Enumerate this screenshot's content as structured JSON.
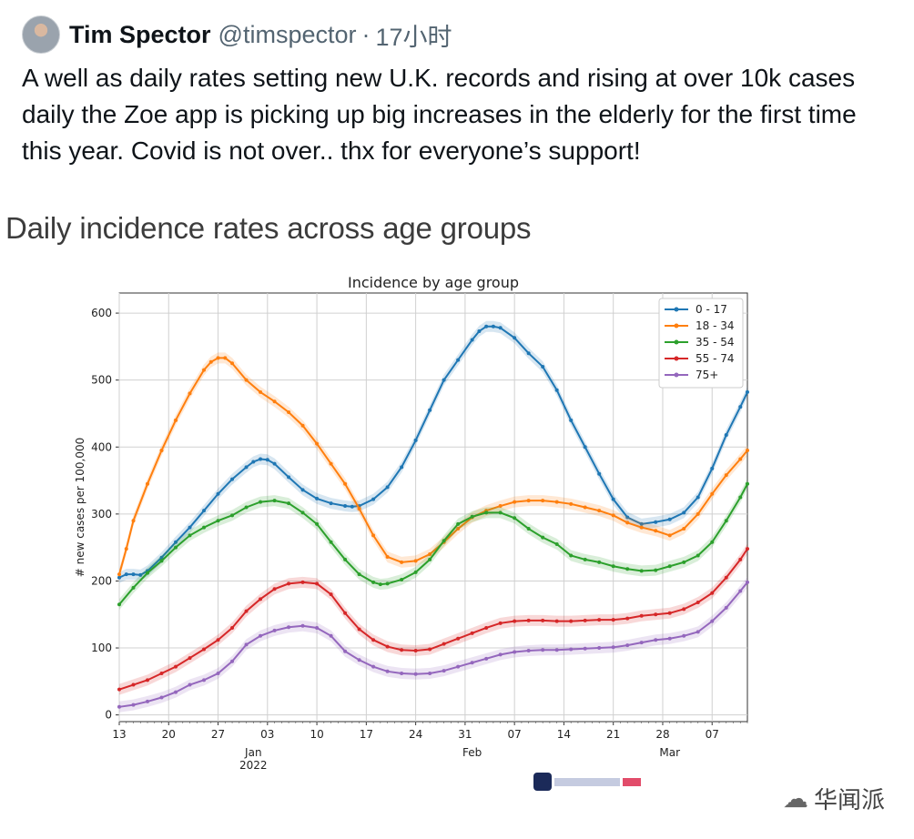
{
  "tweet": {
    "author_name": "Tim Spector",
    "handle": "@timspector",
    "separator": "·",
    "time": "17小时",
    "avatar_icon": "user-avatar",
    "text": "A well as daily rates setting new U.K. records and rising at over 10k cases daily the Zoe app is picking up big increases in the elderly for the first time this year. Covid is not over.. thx for everyone’s support!"
  },
  "chart_card": {
    "heading": "Daily incidence rates across age groups",
    "logo_icon": "covid-symptom-study-zoe-logo"
  },
  "watermark": {
    "icon": "wechat-icon",
    "text": "华闻派"
  },
  "chart_data": {
    "type": "line",
    "title": "Incidence by age group",
    "xlabel": "",
    "ylabel": "# new cases per 100,000",
    "ylim": [
      -10,
      630
    ],
    "yticks": [
      0,
      100,
      200,
      300,
      400,
      500,
      600
    ],
    "grid": true,
    "legend_position": "top-right",
    "x_start": "2021-12-13",
    "x_tick_labels": [
      {
        "day": 0,
        "label": "13"
      },
      {
        "day": 7,
        "label": "20"
      },
      {
        "day": 14,
        "label": "27"
      },
      {
        "day": 21,
        "label": "03"
      },
      {
        "day": 28,
        "label": "10"
      },
      {
        "day": 35,
        "label": "17"
      },
      {
        "day": 42,
        "label": "24"
      },
      {
        "day": 49,
        "label": "31"
      },
      {
        "day": 56,
        "label": "07"
      },
      {
        "day": 63,
        "label": "14"
      },
      {
        "day": 70,
        "label": "21"
      },
      {
        "day": 77,
        "label": "28"
      },
      {
        "day": 84,
        "label": "07"
      }
    ],
    "x_major_labels": [
      {
        "day": 19,
        "label": "Jan"
      },
      {
        "day": 19,
        "label": "2022"
      },
      {
        "day": 50,
        "label": "Feb"
      },
      {
        "day": 78,
        "label": "Mar"
      }
    ],
    "x_range": [
      0,
      89
    ],
    "series": [
      {
        "name": "0 - 17",
        "color": "#1f77b4",
        "points": [
          [
            0,
            205
          ],
          [
            1,
            210
          ],
          [
            2,
            210
          ],
          [
            3,
            209
          ],
          [
            4,
            215
          ],
          [
            6,
            235
          ],
          [
            8,
            258
          ],
          [
            10,
            280
          ],
          [
            12,
            305
          ],
          [
            14,
            330
          ],
          [
            16,
            352
          ],
          [
            18,
            370
          ],
          [
            19,
            378
          ],
          [
            20,
            382
          ],
          [
            21,
            381
          ],
          [
            22,
            375
          ],
          [
            24,
            355
          ],
          [
            26,
            336
          ],
          [
            28,
            323
          ],
          [
            30,
            316
          ],
          [
            32,
            312
          ],
          [
            33,
            311
          ],
          [
            34,
            312
          ],
          [
            36,
            322
          ],
          [
            38,
            340
          ],
          [
            40,
            370
          ],
          [
            42,
            410
          ],
          [
            44,
            455
          ],
          [
            46,
            500
          ],
          [
            48,
            530
          ],
          [
            50,
            560
          ],
          [
            51,
            573
          ],
          [
            52,
            580
          ],
          [
            53,
            580
          ],
          [
            54,
            578
          ],
          [
            56,
            563
          ],
          [
            58,
            540
          ],
          [
            60,
            520
          ],
          [
            62,
            485
          ],
          [
            64,
            440
          ],
          [
            66,
            400
          ],
          [
            68,
            360
          ],
          [
            70,
            322
          ],
          [
            72,
            295
          ],
          [
            74,
            285
          ],
          [
            76,
            288
          ],
          [
            78,
            292
          ],
          [
            80,
            302
          ],
          [
            82,
            325
          ],
          [
            84,
            368
          ],
          [
            86,
            418
          ],
          [
            88,
            460
          ],
          [
            89,
            482
          ]
        ]
      },
      {
        "name": "18 - 34",
        "color": "#ff7f0e",
        "points": [
          [
            0,
            210
          ],
          [
            1,
            248
          ],
          [
            2,
            290
          ],
          [
            4,
            345
          ],
          [
            6,
            395
          ],
          [
            8,
            440
          ],
          [
            10,
            480
          ],
          [
            12,
            515
          ],
          [
            13,
            527
          ],
          [
            14,
            533
          ],
          [
            15,
            533
          ],
          [
            16,
            525
          ],
          [
            18,
            500
          ],
          [
            20,
            482
          ],
          [
            22,
            468
          ],
          [
            24,
            452
          ],
          [
            26,
            432
          ],
          [
            28,
            405
          ],
          [
            30,
            375
          ],
          [
            32,
            345
          ],
          [
            34,
            308
          ],
          [
            36,
            268
          ],
          [
            38,
            236
          ],
          [
            40,
            228
          ],
          [
            42,
            230
          ],
          [
            44,
            240
          ],
          [
            46,
            258
          ],
          [
            48,
            278
          ],
          [
            50,
            295
          ],
          [
            52,
            305
          ],
          [
            54,
            312
          ],
          [
            56,
            318
          ],
          [
            58,
            320
          ],
          [
            60,
            320
          ],
          [
            62,
            318
          ],
          [
            64,
            315
          ],
          [
            66,
            310
          ],
          [
            68,
            305
          ],
          [
            70,
            298
          ],
          [
            72,
            287
          ],
          [
            74,
            280
          ],
          [
            76,
            275
          ],
          [
            78,
            268
          ],
          [
            80,
            278
          ],
          [
            82,
            300
          ],
          [
            84,
            330
          ],
          [
            86,
            358
          ],
          [
            88,
            382
          ],
          [
            89,
            395
          ]
        ]
      },
      {
        "name": "35 - 54",
        "color": "#2ca02c",
        "points": [
          [
            0,
            165
          ],
          [
            2,
            190
          ],
          [
            4,
            212
          ],
          [
            6,
            230
          ],
          [
            8,
            250
          ],
          [
            10,
            268
          ],
          [
            12,
            280
          ],
          [
            14,
            290
          ],
          [
            16,
            298
          ],
          [
            18,
            310
          ],
          [
            20,
            318
          ],
          [
            22,
            320
          ],
          [
            24,
            316
          ],
          [
            26,
            302
          ],
          [
            28,
            285
          ],
          [
            30,
            258
          ],
          [
            32,
            232
          ],
          [
            34,
            210
          ],
          [
            36,
            198
          ],
          [
            37,
            195
          ],
          [
            38,
            196
          ],
          [
            40,
            202
          ],
          [
            42,
            213
          ],
          [
            44,
            232
          ],
          [
            46,
            260
          ],
          [
            48,
            285
          ],
          [
            50,
            296
          ],
          [
            52,
            302
          ],
          [
            54,
            302
          ],
          [
            56,
            294
          ],
          [
            58,
            278
          ],
          [
            60,
            265
          ],
          [
            62,
            255
          ],
          [
            64,
            238
          ],
          [
            66,
            232
          ],
          [
            68,
            228
          ],
          [
            70,
            222
          ],
          [
            72,
            218
          ],
          [
            74,
            215
          ],
          [
            76,
            216
          ],
          [
            78,
            222
          ],
          [
            80,
            228
          ],
          [
            82,
            238
          ],
          [
            84,
            258
          ],
          [
            86,
            290
          ],
          [
            88,
            325
          ],
          [
            89,
            345
          ]
        ]
      },
      {
        "name": "55 - 74",
        "color": "#d62728",
        "points": [
          [
            0,
            38
          ],
          [
            2,
            45
          ],
          [
            4,
            52
          ],
          [
            6,
            62
          ],
          [
            8,
            72
          ],
          [
            10,
            85
          ],
          [
            12,
            98
          ],
          [
            14,
            112
          ],
          [
            16,
            130
          ],
          [
            18,
            155
          ],
          [
            20,
            173
          ],
          [
            22,
            188
          ],
          [
            24,
            196
          ],
          [
            26,
            198
          ],
          [
            28,
            196
          ],
          [
            30,
            180
          ],
          [
            32,
            152
          ],
          [
            34,
            128
          ],
          [
            36,
            112
          ],
          [
            38,
            102
          ],
          [
            40,
            97
          ],
          [
            42,
            96
          ],
          [
            44,
            98
          ],
          [
            46,
            106
          ],
          [
            48,
            114
          ],
          [
            50,
            122
          ],
          [
            52,
            130
          ],
          [
            54,
            137
          ],
          [
            56,
            140
          ],
          [
            58,
            141
          ],
          [
            60,
            141
          ],
          [
            62,
            140
          ],
          [
            64,
            140
          ],
          [
            66,
            141
          ],
          [
            68,
            142
          ],
          [
            70,
            142
          ],
          [
            72,
            144
          ],
          [
            74,
            148
          ],
          [
            76,
            150
          ],
          [
            78,
            152
          ],
          [
            80,
            158
          ],
          [
            82,
            168
          ],
          [
            84,
            182
          ],
          [
            86,
            205
          ],
          [
            88,
            232
          ],
          [
            89,
            248
          ]
        ]
      },
      {
        "name": "75+",
        "color": "#9467bd",
        "points": [
          [
            0,
            12
          ],
          [
            2,
            15
          ],
          [
            4,
            20
          ],
          [
            6,
            26
          ],
          [
            8,
            34
          ],
          [
            10,
            45
          ],
          [
            12,
            52
          ],
          [
            14,
            62
          ],
          [
            16,
            80
          ],
          [
            18,
            105
          ],
          [
            20,
            118
          ],
          [
            22,
            126
          ],
          [
            24,
            131
          ],
          [
            26,
            133
          ],
          [
            28,
            130
          ],
          [
            30,
            118
          ],
          [
            32,
            95
          ],
          [
            34,
            82
          ],
          [
            36,
            72
          ],
          [
            38,
            65
          ],
          [
            40,
            62
          ],
          [
            42,
            61
          ],
          [
            44,
            62
          ],
          [
            46,
            66
          ],
          [
            48,
            72
          ],
          [
            50,
            78
          ],
          [
            52,
            84
          ],
          [
            54,
            90
          ],
          [
            56,
            94
          ],
          [
            58,
            96
          ],
          [
            60,
            97
          ],
          [
            62,
            97
          ],
          [
            64,
            98
          ],
          [
            66,
            99
          ],
          [
            68,
            100
          ],
          [
            70,
            101
          ],
          [
            72,
            104
          ],
          [
            74,
            108
          ],
          [
            76,
            112
          ],
          [
            78,
            114
          ],
          [
            80,
            118
          ],
          [
            82,
            124
          ],
          [
            84,
            140
          ],
          [
            86,
            160
          ],
          [
            88,
            185
          ],
          [
            89,
            198
          ]
        ]
      }
    ]
  }
}
